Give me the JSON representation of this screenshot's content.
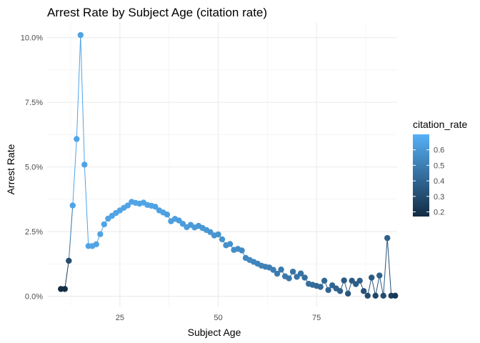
{
  "chart_data": {
    "type": "line",
    "title": "Arrest Rate by Subject Age (citation rate)",
    "xlabel": "Subject Age",
    "ylabel": "Arrest Rate",
    "xlim": [
      6.5,
      95.5
    ],
    "ylim": [
      -0.004,
      0.106
    ],
    "x_ticks": [
      25,
      50,
      75
    ],
    "x_tick_labels": [
      "25",
      "50",
      "75"
    ],
    "y_ticks": [
      0,
      0.025,
      0.05,
      0.075,
      0.1
    ],
    "y_tick_labels": [
      "0.0%",
      "2.5%",
      "5.0%",
      "7.5%",
      "10.0%"
    ],
    "grid": true,
    "legend": {
      "title": "citation_rate",
      "position": "right",
      "ticks": [
        0.2,
        0.3,
        0.4,
        0.5,
        0.6
      ],
      "tick_labels": [
        "0.2",
        "0.3",
        "0.4",
        "0.5",
        "0.6"
      ],
      "range": [
        0.17,
        0.7
      ],
      "low_color": "#132B43",
      "high_color": "#56B1F7"
    },
    "series": [
      {
        "x": [
          10,
          11,
          12,
          13,
          14,
          15,
          16,
          17,
          18,
          19,
          20,
          21,
          22,
          23,
          24,
          25,
          26,
          27,
          28,
          29,
          30,
          31,
          32,
          33,
          34,
          35,
          36,
          37,
          38,
          39,
          40,
          41,
          42,
          43,
          44,
          45,
          46,
          47,
          48,
          49,
          50,
          51,
          52,
          53,
          54,
          55,
          56,
          57,
          58,
          59,
          60,
          61,
          62,
          63,
          64,
          65,
          66,
          67,
          68,
          69,
          70,
          71,
          72,
          73,
          74,
          75,
          76,
          77,
          78,
          79,
          80,
          81,
          82,
          83,
          84,
          85,
          86,
          87,
          88,
          89,
          90,
          91,
          92,
          93,
          94,
          95
        ],
        "y": [
          0.0028,
          0.0028,
          0.0137,
          0.0351,
          0.0608,
          0.101,
          0.0509,
          0.0194,
          0.0194,
          0.0201,
          0.024,
          0.0278,
          0.03,
          0.0311,
          0.0322,
          0.0332,
          0.0342,
          0.0351,
          0.0365,
          0.0361,
          0.0358,
          0.0362,
          0.0353,
          0.035,
          0.0346,
          0.0332,
          0.0324,
          0.0316,
          0.029,
          0.0299,
          0.0293,
          0.028,
          0.0267,
          0.0276,
          0.0266,
          0.0272,
          0.0264,
          0.0256,
          0.0248,
          0.0235,
          0.0239,
          0.022,
          0.0197,
          0.0202,
          0.0179,
          0.0183,
          0.0177,
          0.0148,
          0.014,
          0.0133,
          0.0126,
          0.0118,
          0.0114,
          0.0111,
          0.0102,
          0.0087,
          0.0103,
          0.0077,
          0.0069,
          0.0095,
          0.0075,
          0.0088,
          0.0072,
          0.0048,
          0.0044,
          0.004,
          0.0036,
          0.006,
          0.0024,
          0.0042,
          0.003,
          0.002,
          0.0061,
          0.001,
          0.006,
          0.0047,
          0.006,
          0.002,
          0.0002,
          0.0072,
          0.0002,
          0.008,
          0.0002,
          0.0225,
          0.0002,
          0.0002
        ],
        "color_values": [
          0.17,
          0.18,
          0.3,
          0.65,
          0.65,
          0.65,
          0.65,
          0.65,
          0.65,
          0.65,
          0.65,
          0.65,
          0.65,
          0.65,
          0.65,
          0.65,
          0.65,
          0.65,
          0.65,
          0.65,
          0.65,
          0.65,
          0.65,
          0.65,
          0.64,
          0.64,
          0.64,
          0.63,
          0.63,
          0.63,
          0.62,
          0.62,
          0.62,
          0.61,
          0.61,
          0.6,
          0.6,
          0.6,
          0.59,
          0.59,
          0.58,
          0.58,
          0.57,
          0.57,
          0.56,
          0.56,
          0.55,
          0.54,
          0.54,
          0.53,
          0.52,
          0.52,
          0.51,
          0.5,
          0.5,
          0.49,
          0.48,
          0.48,
          0.47,
          0.46,
          0.46,
          0.45,
          0.44,
          0.44,
          0.43,
          0.42,
          0.42,
          0.41,
          0.4,
          0.4,
          0.39,
          0.38,
          0.36,
          0.34,
          0.36,
          0.37,
          0.38,
          0.32,
          0.3,
          0.35,
          0.28,
          0.38,
          0.3,
          0.38,
          0.25,
          0.22
        ]
      }
    ]
  }
}
